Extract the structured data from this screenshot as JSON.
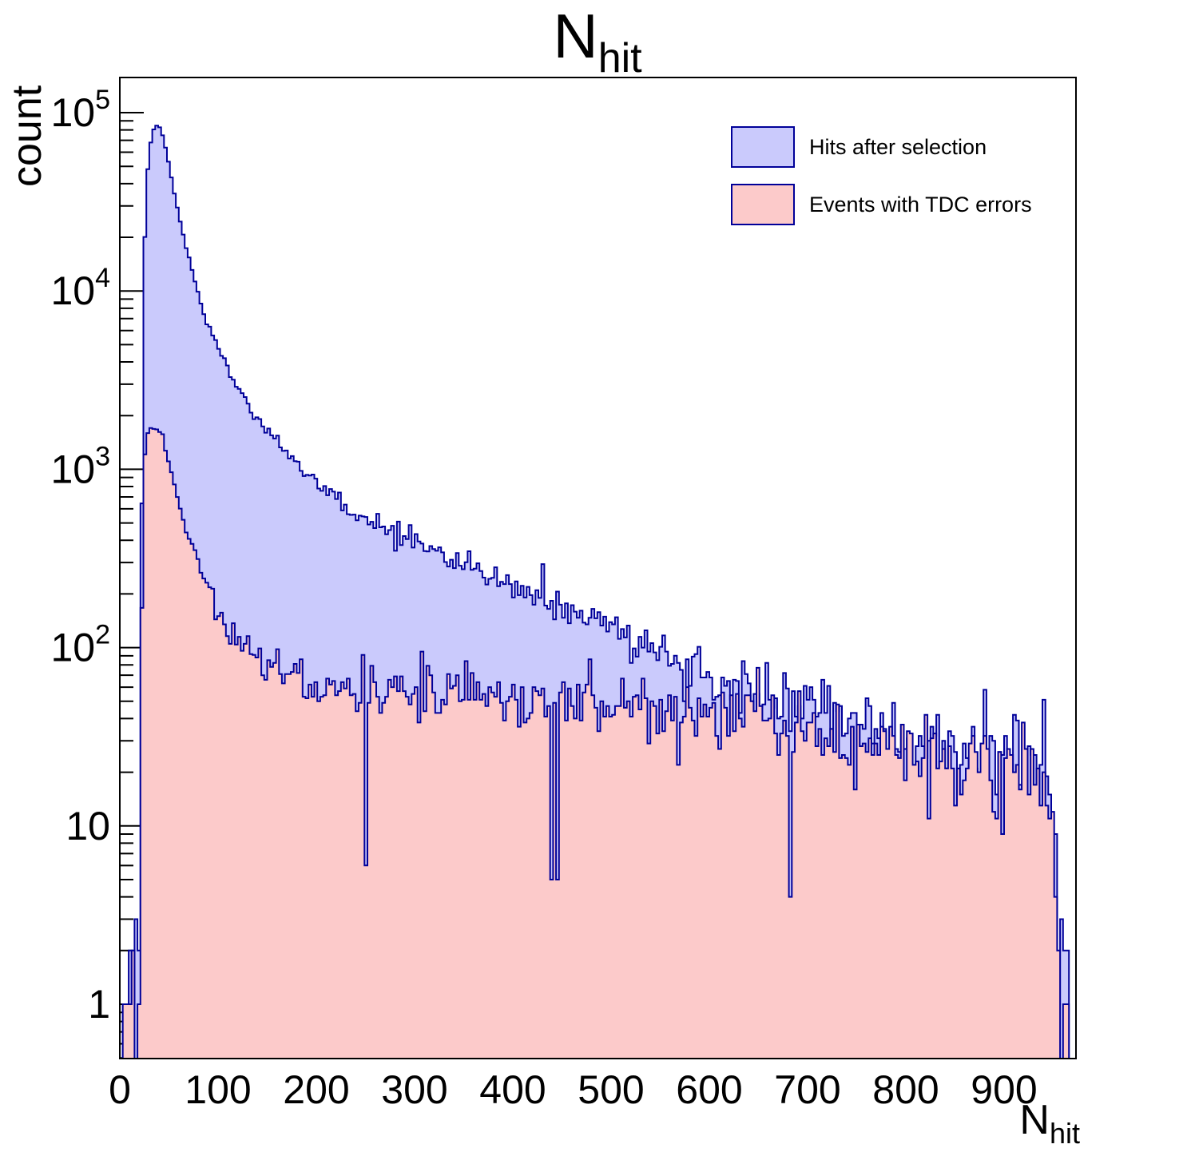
{
  "title": {
    "main": "N",
    "sub": "hit"
  },
  "axes": {
    "x": {
      "title_main": "N",
      "title_sub": "hit",
      "min": 0,
      "max": 972,
      "tick_values": [
        0,
        100,
        200,
        300,
        400,
        500,
        600,
        700,
        800,
        900
      ],
      "minor_step": 20
    },
    "y": {
      "title": "count",
      "scale": "log",
      "min": 0.5,
      "max": 157000,
      "tick_exponents": [
        0,
        1,
        2,
        3,
        4,
        5
      ]
    }
  },
  "legend": {
    "items": [
      {
        "label": "Hits after selection",
        "color": "#cacafc"
      },
      {
        "label": "Events with TDC errors",
        "color": "#fccaca"
      }
    ]
  },
  "colors": {
    "line": "#000099",
    "frame": "#000000",
    "background": "#ffffff"
  },
  "chart_data": {
    "type": "histogram",
    "title": "N_hit",
    "xlabel": "N_hit",
    "ylabel": "count",
    "x_range": [
      0,
      972
    ],
    "y_range": [
      0.5,
      157000
    ],
    "bin_width": 3,
    "grid": false,
    "legend_position": "top-right",
    "series": [
      {
        "name": "Hits after selection",
        "fill": "#cacafc",
        "line": "#000099",
        "noise_scale": 1.6,
        "noise_seed": 20240501,
        "dropout_rate": 0.018,
        "isolated_bins": [
          [
            2,
            1
          ],
          [
            5,
            1
          ],
          [
            8,
            2
          ],
          [
            11,
            1
          ],
          [
            14,
            3
          ]
        ],
        "trend_anchors": [
          [
            18,
            0.7
          ],
          [
            19,
            2
          ],
          [
            20,
            8
          ],
          [
            21,
            60
          ],
          [
            22,
            300
          ],
          [
            23,
            1500
          ],
          [
            24,
            6000
          ],
          [
            25,
            15000
          ],
          [
            26,
            26000
          ],
          [
            28,
            45000
          ],
          [
            30,
            60000
          ],
          [
            33,
            76000
          ],
          [
            36,
            84000
          ],
          [
            39,
            86000
          ],
          [
            42,
            80000
          ],
          [
            45,
            70000
          ],
          [
            48,
            58000
          ],
          [
            52,
            45000
          ],
          [
            56,
            34000
          ],
          [
            60,
            27000
          ],
          [
            65,
            20000
          ],
          [
            70,
            15500
          ],
          [
            75,
            12000
          ],
          [
            80,
            9500
          ],
          [
            85,
            7800
          ],
          [
            90,
            6500
          ],
          [
            95,
            5600
          ],
          [
            100,
            4800
          ],
          [
            110,
            3700
          ],
          [
            120,
            2900
          ],
          [
            130,
            2350
          ],
          [
            140,
            1950
          ],
          [
            150,
            1650
          ],
          [
            160,
            1420
          ],
          [
            170,
            1230
          ],
          [
            180,
            1080
          ],
          [
            190,
            960
          ],
          [
            200,
            860
          ],
          [
            220,
            700
          ],
          [
            240,
            580
          ],
          [
            260,
            500
          ],
          [
            280,
            440
          ],
          [
            300,
            395
          ],
          [
            320,
            350
          ],
          [
            340,
            310
          ],
          [
            360,
            280
          ],
          [
            380,
            252
          ],
          [
            400,
            228
          ],
          [
            420,
            205
          ],
          [
            440,
            185
          ],
          [
            460,
            167
          ],
          [
            480,
            150
          ],
          [
            500,
            133
          ],
          [
            520,
            118
          ],
          [
            540,
            105
          ],
          [
            560,
            88
          ],
          [
            580,
            77
          ],
          [
            600,
            68
          ],
          [
            620,
            62
          ],
          [
            640,
            57
          ],
          [
            660,
            53
          ],
          [
            680,
            49
          ],
          [
            700,
            46
          ],
          [
            720,
            43
          ],
          [
            740,
            40
          ],
          [
            760,
            37
          ],
          [
            780,
            34.5
          ],
          [
            800,
            32
          ],
          [
            820,
            30
          ],
          [
            840,
            28
          ],
          [
            860,
            26
          ],
          [
            880,
            24
          ],
          [
            900,
            22.5
          ],
          [
            915,
            21.5
          ],
          [
            930,
            21
          ],
          [
            940,
            20
          ],
          [
            945,
            16
          ],
          [
            950,
            8
          ],
          [
            954,
            3
          ],
          [
            958,
            1.2
          ],
          [
            962,
            0.7
          ],
          [
            966,
            0.6
          ],
          [
            969,
            0.55
          ],
          [
            972,
            0
          ]
        ]
      },
      {
        "name": "Events with TDC errors",
        "fill": "#fccaca",
        "line": "#000099",
        "noise_scale": 1.6,
        "noise_seed": 987654321,
        "dropout_rate": 0.018,
        "isolated_bins": [
          [
            3,
            1
          ],
          [
            6,
            1
          ],
          [
            10,
            1
          ],
          [
            13,
            2
          ]
        ],
        "trend_anchors": [
          [
            18,
            0.6
          ],
          [
            19,
            1.5
          ],
          [
            20,
            5
          ],
          [
            21,
            25
          ],
          [
            22,
            90
          ],
          [
            23,
            300
          ],
          [
            24,
            700
          ],
          [
            25,
            1050
          ],
          [
            26,
            1300
          ],
          [
            28,
            1500
          ],
          [
            31,
            1650
          ],
          [
            34,
            1730
          ],
          [
            37,
            1760
          ],
          [
            40,
            1700
          ],
          [
            43,
            1550
          ],
          [
            46,
            1350
          ],
          [
            49,
            1150
          ],
          [
            52,
            960
          ],
          [
            56,
            780
          ],
          [
            60,
            640
          ],
          [
            65,
            510
          ],
          [
            70,
            420
          ],
          [
            75,
            350
          ],
          [
            80,
            300
          ],
          [
            85,
            260
          ],
          [
            90,
            228
          ],
          [
            95,
            170
          ],
          [
            100,
            150
          ],
          [
            110,
            128
          ],
          [
            120,
            112
          ],
          [
            130,
            100
          ],
          [
            140,
            92
          ],
          [
            150,
            85
          ],
          [
            160,
            80
          ],
          [
            170,
            75
          ],
          [
            180,
            70
          ],
          [
            190,
            67
          ],
          [
            200,
            64
          ],
          [
            220,
            60
          ],
          [
            240,
            57
          ],
          [
            260,
            55
          ],
          [
            280,
            54
          ],
          [
            300,
            54
          ],
          [
            320,
            56
          ],
          [
            340,
            56
          ],
          [
            360,
            55
          ],
          [
            380,
            54
          ],
          [
            400,
            53
          ],
          [
            420,
            52
          ],
          [
            440,
            51
          ],
          [
            460,
            50
          ],
          [
            480,
            49
          ],
          [
            500,
            48
          ],
          [
            520,
            47
          ],
          [
            540,
            46
          ],
          [
            560,
            45
          ],
          [
            580,
            43.5
          ],
          [
            600,
            42
          ],
          [
            620,
            40.5
          ],
          [
            640,
            39
          ],
          [
            660,
            37.5
          ],
          [
            680,
            36
          ],
          [
            700,
            34.5
          ],
          [
            720,
            33
          ],
          [
            740,
            31.5
          ],
          [
            760,
            30
          ],
          [
            780,
            28.5
          ],
          [
            800,
            27
          ],
          [
            820,
            25.5
          ],
          [
            840,
            24
          ],
          [
            860,
            23
          ],
          [
            880,
            22
          ],
          [
            900,
            21
          ],
          [
            915,
            20
          ],
          [
            930,
            19.5
          ],
          [
            940,
            19
          ],
          [
            945,
            15
          ],
          [
            950,
            7
          ],
          [
            954,
            2.5
          ],
          [
            958,
            1.1
          ],
          [
            962,
            0.7
          ],
          [
            966,
            0.6
          ],
          [
            969,
            0.5
          ],
          [
            972,
            0
          ]
        ]
      }
    ]
  }
}
